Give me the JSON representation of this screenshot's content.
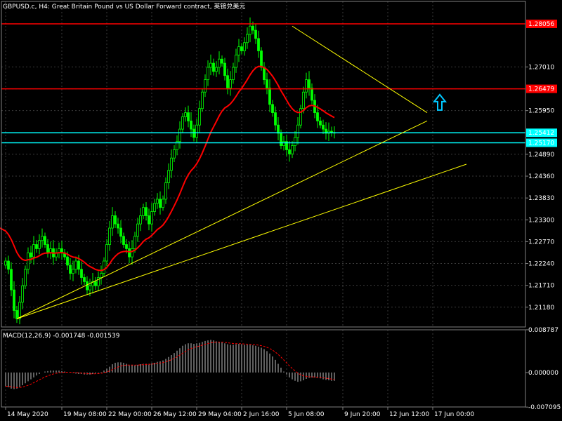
{
  "header": {
    "title": "GBPUSD.c, H4:  Great Britain Pound vs US Dollar Forward contract, 英镑兑美元"
  },
  "macd_label": "MACD(12,26,9) -0.001748 -0.001539",
  "colors": {
    "background": "#000000",
    "grid": "#3a3a3a",
    "bull_candle": "#00ff00",
    "bear_candle": "#00ff00",
    "ma_line": "#ff0000",
    "horizontal_red": "#ff0000",
    "horizontal_cyan": "#00ffff",
    "trendline": "#ffff00",
    "macd_hist": "#c0c0c0",
    "macd_signal": "#ff0000",
    "arrow": "#00c8ff"
  },
  "chart_data": [
    {
      "type": "candlestick",
      "name": "price",
      "ylim": [
        1.207,
        1.286
      ],
      "y_ticks": [
        "1.28056",
        "1.27010",
        "1.26479",
        "1.25950",
        "1.25412",
        "1.25170",
        "1.24890",
        "1.24360",
        "1.23830",
        "1.23300",
        "1.22770",
        "1.22240",
        "1.21710",
        "1.21180"
      ],
      "x_ticks": [
        "14 May 2020",
        "19 May 08:00",
        "22 May 00:00",
        "26 May 12:00",
        "29 May 04:00",
        "2 Jun 16:00",
        "5 Jun 08:00",
        "9 Jun 20:00",
        "12 Jun 12:00",
        "17 Jun 00:00"
      ],
      "x_tick_bar_index": [
        0,
        20,
        36,
        52,
        68,
        84,
        100,
        120,
        136,
        152
      ],
      "horizontal_levels": [
        {
          "value": 1.28056,
          "label": "1.28056",
          "color": "red"
        },
        {
          "value": 1.26479,
          "label": "1.26479",
          "color": "red"
        },
        {
          "value": 1.25412,
          "label": "1.25412",
          "color": "cyan"
        },
        {
          "value": 1.2517,
          "label": "1.25170",
          "color": "cyan"
        }
      ],
      "closes": [
        1.223,
        1.221,
        1.216,
        1.211,
        1.209,
        1.213,
        1.217,
        1.221,
        1.225,
        1.224,
        1.227,
        1.226,
        1.228,
        1.229,
        1.227,
        1.225,
        1.226,
        1.224,
        1.225,
        1.226,
        1.225,
        1.224,
        1.222,
        1.22,
        1.221,
        1.223,
        1.221,
        1.219,
        1.218,
        1.216,
        1.217,
        1.218,
        1.217,
        1.219,
        1.22,
        1.223,
        1.227,
        1.231,
        1.234,
        1.232,
        1.231,
        1.229,
        1.227,
        1.226,
        1.224,
        1.226,
        1.229,
        1.232,
        1.234,
        1.236,
        1.234,
        1.232,
        1.235,
        1.237,
        1.238,
        1.236,
        1.238,
        1.242,
        1.245,
        1.248,
        1.25,
        1.252,
        1.255,
        1.258,
        1.259,
        1.257,
        1.255,
        1.253,
        1.256,
        1.26,
        1.264,
        1.267,
        1.27,
        1.271,
        1.269,
        1.27,
        1.272,
        1.271,
        1.268,
        1.265,
        1.267,
        1.27,
        1.273,
        1.275,
        1.274,
        1.276,
        1.278,
        1.28,
        1.279,
        1.277,
        1.274,
        1.27,
        1.267,
        1.265,
        1.261,
        1.259,
        1.256,
        1.254,
        1.251,
        1.252,
        1.25,
        1.249,
        1.251,
        1.253,
        1.256,
        1.26,
        1.264,
        1.267,
        1.265,
        1.262,
        1.259,
        1.257,
        1.256,
        1.255,
        1.254,
        1.2545,
        1.2542,
        1.2541
      ],
      "moving_average": {
        "start": 1.231,
        "values_note": ""
      },
      "trendlines": [
        {
          "from": [
            4,
            1.209
          ],
          "to": [
            150,
            1.257
          ]
        },
        {
          "from": [
            4,
            1.209
          ],
          "to": [
            164,
            1.2465
          ]
        },
        {
          "from": [
            102,
            1.28
          ],
          "to": [
            150,
            1.259
          ]
        }
      ]
    },
    {
      "type": "macd",
      "name": "MACD(12,26,9)",
      "ylim": [
        -0.00707,
        0.00878
      ],
      "y_ticks": [
        "0.008787",
        "0.000000",
        "-0.007095"
      ],
      "histogram": [
        -0.0028,
        -0.003,
        -0.0033,
        -0.0034,
        -0.0033,
        -0.003,
        -0.0026,
        -0.0022,
        -0.0018,
        -0.0014,
        -0.001,
        -0.0006,
        -0.0003,
        0.0,
        0.0002,
        0.0003,
        0.0004,
        0.0004,
        0.0004,
        0.0004,
        0.0003,
        0.0002,
        0.0001,
        0.0,
        -0.0001,
        -0.0002,
        -0.0003,
        -0.0003,
        -0.0004,
        -0.0004,
        -0.0004,
        -0.0003,
        -0.0002,
        -0.0001,
        0.0001,
        0.0004,
        0.0008,
        0.0012,
        0.0017,
        0.002,
        0.0021,
        0.0021,
        0.002,
        0.0018,
        0.0016,
        0.0015,
        0.0015,
        0.0016,
        0.0017,
        0.0018,
        0.0018,
        0.0018,
        0.0019,
        0.002,
        0.0022,
        0.0023,
        0.0025,
        0.0028,
        0.0032,
        0.0036,
        0.004,
        0.0045,
        0.005,
        0.0055,
        0.0058,
        0.006,
        0.006,
        0.0059,
        0.006,
        0.0061,
        0.0063,
        0.0065,
        0.0066,
        0.0067,
        0.0066,
        0.0064,
        0.0063,
        0.0062,
        0.006,
        0.0058,
        0.0057,
        0.0057,
        0.0058,
        0.0059,
        0.0058,
        0.0057,
        0.0057,
        0.0057,
        0.0056,
        0.0055,
        0.0053,
        0.0051,
        0.0048,
        0.0044,
        0.0039,
        0.0033,
        0.0026,
        0.0018,
        0.001,
        0.0002,
        -0.0004,
        -0.001,
        -0.0014,
        -0.0017,
        -0.0019,
        -0.0018,
        -0.0016,
        -0.0013,
        -0.0011,
        -0.001,
        -0.001,
        -0.0011,
        -0.0012,
        -0.0014,
        -0.0015,
        -0.0016,
        -0.0017,
        -0.0017
      ],
      "signal_note": ""
    }
  ]
}
